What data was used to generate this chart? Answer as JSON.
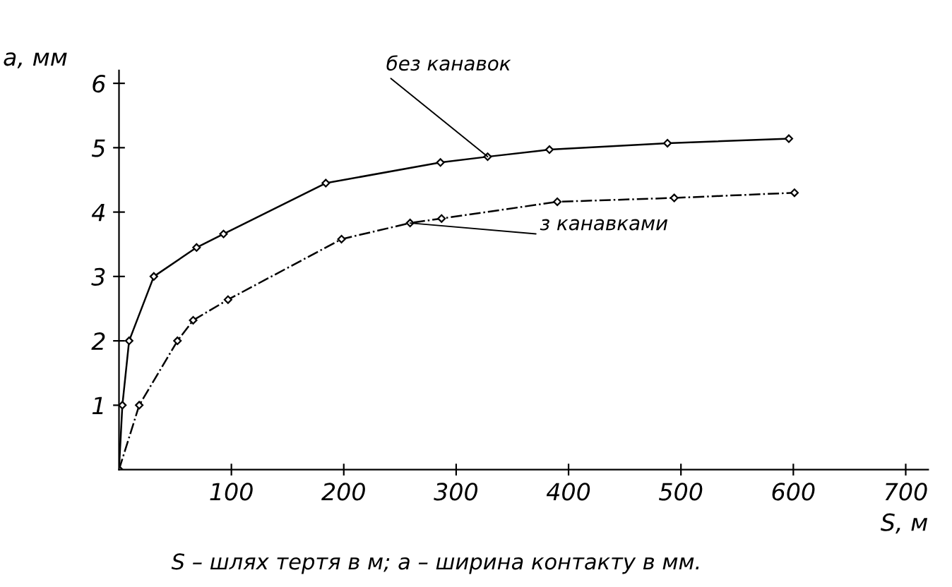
{
  "chart_data": {
    "type": "line",
    "xlabel": "S, м",
    "ylabel": "а, мм",
    "series": [
      {
        "name": "без канавок",
        "color": "#000000",
        "line_style": "solid",
        "x": [
          0,
          3,
          9,
          31,
          69,
          93,
          184,
          286,
          328,
          383,
          488,
          596
        ],
        "values": [
          0,
          1,
          2,
          3,
          3.45,
          3.66,
          4.45,
          4.77,
          4.86,
          4.97,
          5.07,
          5.14
        ]
      },
      {
        "name": "з канавками",
        "color": "#000000",
        "line_style": "dashdot",
        "x": [
          0,
          18,
          52,
          66,
          97,
          198,
          259,
          287,
          390,
          494,
          601
        ],
        "values": [
          0,
          1,
          2,
          2.32,
          2.64,
          3.58,
          3.83,
          3.9,
          4.16,
          4.22,
          4.3
        ]
      }
    ],
    "marker": "diamond",
    "xlim": [
      0,
      720
    ],
    "ylim": [
      0,
      6.2
    ],
    "xticks": [
      100,
      200,
      300,
      400,
      500,
      600,
      700
    ],
    "yticks": [
      1,
      2,
      3,
      4,
      5,
      6
    ],
    "grid": false,
    "legend": false,
    "annotations": [
      "S – шлях тертя в м; а – ширина контакту в мм."
    ]
  }
}
